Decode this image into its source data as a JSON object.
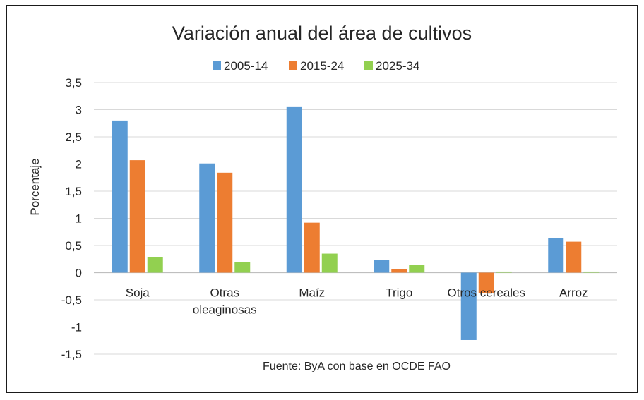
{
  "chart_data": {
    "type": "bar",
    "title": "Variación anual del área de cultivos",
    "ylabel": "Porcentaje",
    "xlabel": "",
    "source_note": "Fuente: ByA con base en OCDE FAO",
    "categories": [
      [
        "Soja"
      ],
      [
        "Otras",
        "oleaginosas"
      ],
      [
        "Maíz"
      ],
      [
        "Trigo"
      ],
      [
        "Otros cereales"
      ],
      [
        "Arroz"
      ]
    ],
    "series": [
      {
        "name": "2005-14",
        "color": "#5b9bd5",
        "values": [
          2.8,
          2.01,
          3.06,
          0.23,
          -1.24,
          0.63
        ]
      },
      {
        "name": "2015-24",
        "color": "#ed7d31",
        "values": [
          2.07,
          1.84,
          0.92,
          0.07,
          -0.37,
          0.57
        ]
      },
      {
        "name": "2025-34",
        "color": "#92d050",
        "values": [
          0.28,
          0.19,
          0.35,
          0.14,
          0.02,
          0.02
        ]
      }
    ],
    "ylim": [
      -1.5,
      3.5
    ],
    "yticks": [
      "3,5",
      "3",
      "2,5",
      "2",
      "1,5",
      "1",
      "0,5",
      "0",
      "-0,5",
      "-1",
      "-1,5"
    ],
    "legend_position": "top",
    "grid": true
  }
}
